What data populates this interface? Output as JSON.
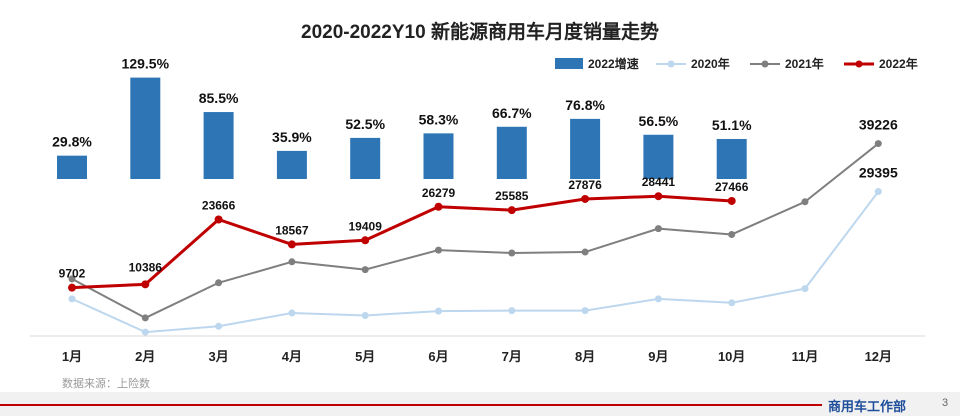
{
  "chart_data": {
    "type": "bar+line",
    "title": "2020-2022Y10 新能源商用车月度销量走势",
    "categories": [
      "1月",
      "2月",
      "3月",
      "4月",
      "5月",
      "6月",
      "7月",
      "8月",
      "9月",
      "10月",
      "11月",
      "12月"
    ],
    "growth_series": {
      "name": "2022增速",
      "values": [
        29.8,
        129.5,
        85.5,
        35.9,
        52.5,
        58.3,
        66.7,
        76.8,
        56.5,
        51.1,
        null,
        null
      ],
      "labels": [
        "29.8%",
        "129.5%",
        "85.5%",
        "35.9%",
        "52.5%",
        "58.3%",
        "66.7%",
        "76.8%",
        "56.5%",
        "51.1%",
        "",
        ""
      ],
      "color": "#2e75b6"
    },
    "series": [
      {
        "name": "2020年",
        "values": [
          7400,
          600,
          1800,
          4500,
          4000,
          4900,
          5000,
          5000,
          7400,
          6600,
          9500,
          29395
        ],
        "labels": [
          "",
          "",
          "",
          "",
          "",
          "",
          "",
          "",
          "",
          "",
          "",
          "29395"
        ],
        "color": "#bdd7ee"
      },
      {
        "name": "2021年",
        "values": [
          11500,
          3500,
          10700,
          15000,
          13400,
          17400,
          16800,
          17000,
          21800,
          20600,
          27300,
          39226
        ],
        "labels": [
          "",
          "",
          "",
          "",
          "",
          "",
          "",
          "",
          "",
          "",
          "",
          "39226"
        ],
        "color": "#7f7f7f"
      },
      {
        "name": "2022年",
        "values": [
          9702,
          10386,
          23666,
          18567,
          19409,
          26279,
          25585,
          27876,
          28441,
          27466,
          null,
          null
        ],
        "labels": [
          "9702",
          "10386",
          "23666",
          "18567",
          "19409",
          "26279",
          "25585",
          "27876",
          "28441",
          "27466",
          "",
          ""
        ],
        "color": "#c00000"
      }
    ],
    "legend_position": "top-right",
    "grid": false
  },
  "footer": {
    "source": "数据来源：上险数",
    "department": "商用车工作部",
    "page_number": "3"
  }
}
